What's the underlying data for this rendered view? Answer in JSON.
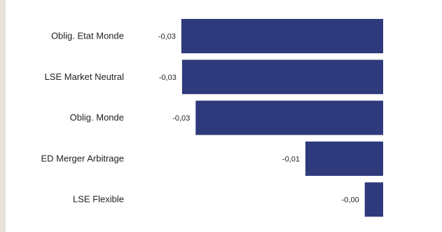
{
  "chart_data": {
    "type": "bar",
    "orientation": "horizontal",
    "categories": [
      "Oblig. Etat Monde",
      "LSE Market Neutral",
      "Oblig. Monde",
      "ED Merger Arbitrage",
      "LSE Flexible"
    ],
    "values": [
      -0.0296,
      -0.0295,
      -0.0275,
      -0.0114,
      -0.0027
    ],
    "value_labels": [
      "-0,03",
      "-0,03",
      "-0,03",
      "-0,01",
      "-0,00"
    ],
    "xlim": [
      -0.03,
      0
    ],
    "bar_color": "#2f3a7c",
    "grid": false,
    "legend": "none"
  }
}
